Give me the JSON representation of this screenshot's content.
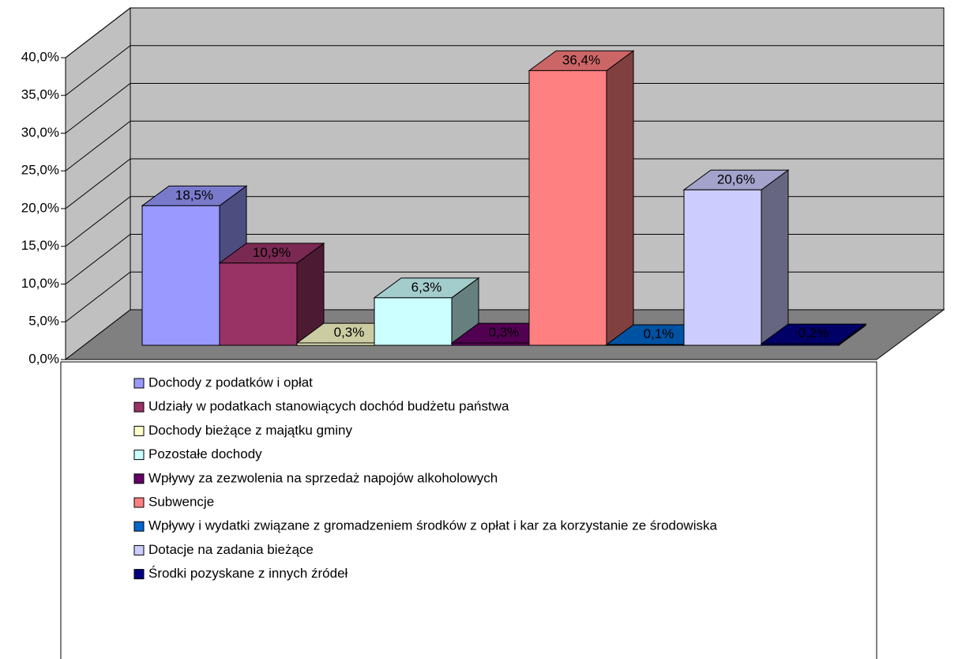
{
  "chart_data": {
    "type": "bar3d",
    "ylim": [
      0,
      40
    ],
    "yticks": [
      {
        "value": 0,
        "label": "0,0%"
      },
      {
        "value": 5,
        "label": "5,0%"
      },
      {
        "value": 10,
        "label": "10,0%"
      },
      {
        "value": 15,
        "label": "15,0%"
      },
      {
        "value": 20,
        "label": "20,0%"
      },
      {
        "value": 25,
        "label": "25,0%"
      },
      {
        "value": 30,
        "label": "30,0%"
      },
      {
        "value": 35,
        "label": "35,0%"
      },
      {
        "value": 40,
        "label": "40,0%"
      }
    ],
    "grid": true,
    "legend": "bottom",
    "series": [
      {
        "name": "Dochody z podatków i opłat",
        "color": "#9999ff",
        "values": [
          18.5
        ],
        "value_labels": [
          "18,5%"
        ]
      },
      {
        "name": "Udziały w podatkach stanowiących dochód budżetu państwa",
        "color": "#993366",
        "values": [
          10.9
        ],
        "value_labels": [
          "10,9%"
        ]
      },
      {
        "name": "Dochody bieżące z majątku gminy",
        "color": "#ffffcc",
        "values": [
          0.3
        ],
        "value_labels": [
          "0,3%"
        ]
      },
      {
        "name": "Pozostałe dochody",
        "color": "#ccffff",
        "values": [
          6.3
        ],
        "value_labels": [
          "6,3%"
        ]
      },
      {
        "name": "Wpływy za zezwolenia na sprzedaż napojów alkoholowych",
        "color": "#660066",
        "values": [
          0.3
        ],
        "value_labels": [
          "0,3%"
        ]
      },
      {
        "name": "Subwencje",
        "color": "#ff8080",
        "values": [
          36.4
        ],
        "value_labels": [
          "36,4%"
        ]
      },
      {
        "name": "Wpływy i wydatki związane z gromadzeniem środków z opłat i kar za korzystanie ze środowiska",
        "color": "#0066cc",
        "values": [
          0.1
        ],
        "value_labels": [
          "0,1%"
        ]
      },
      {
        "name": "Dotacje na zadania bieżące",
        "color": "#ccccff",
        "values": [
          20.6
        ],
        "value_labels": [
          "20,6%"
        ]
      },
      {
        "name": "Środki pozyskane z innych źródeł",
        "color": "#000080",
        "values": [
          0.2
        ],
        "value_labels": [
          "0,2%"
        ]
      }
    ]
  }
}
